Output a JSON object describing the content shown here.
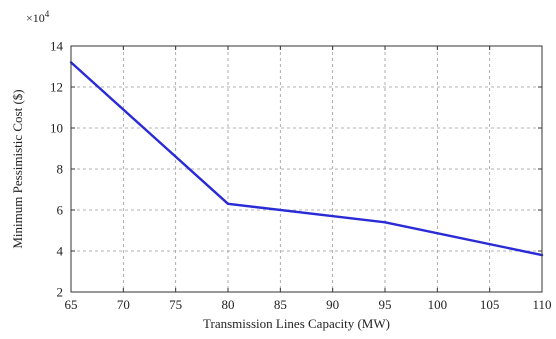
{
  "chart_data": {
    "type": "line",
    "title": "",
    "xlabel": "Transmission Lines Capacity (MW)",
    "ylabel": "Minimum Pessimistic Cost ($)",
    "y_multiplier_base": "×10",
    "y_multiplier_exp": "4",
    "xlim": [
      65,
      110
    ],
    "ylim": [
      2,
      14
    ],
    "x_ticks": [
      65,
      70,
      75,
      80,
      85,
      90,
      95,
      100,
      105,
      110
    ],
    "y_ticks": [
      2,
      4,
      6,
      8,
      10,
      12,
      14
    ],
    "grid": true,
    "legend": "none",
    "series": [
      {
        "color": "#2b2bd6",
        "x": [
          65,
          80,
          95,
          110
        ],
        "y": [
          13.2,
          6.3,
          5.4,
          3.8
        ]
      }
    ]
  }
}
